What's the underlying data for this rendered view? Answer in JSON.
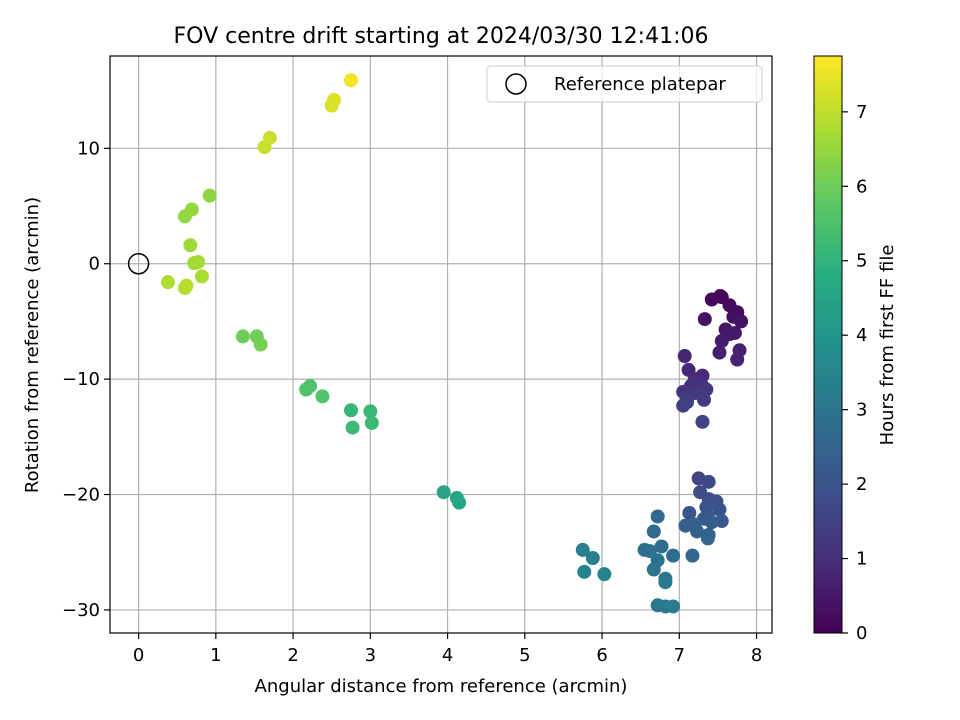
{
  "chart_data": {
    "type": "scatter",
    "title": "FOV centre drift starting at 2024/03/30 12:41:06",
    "xlabel": "Angular distance from reference (arcmin)",
    "ylabel": "Rotation from reference (arcmin)",
    "xlim": [
      -0.37,
      8.2
    ],
    "ylim": [
      -32.0,
      18.0
    ],
    "xticks": [
      0,
      1,
      2,
      3,
      4,
      5,
      6,
      7,
      8
    ],
    "yticks": [
      -30,
      -20,
      -10,
      0,
      10
    ],
    "grid": true,
    "legend": {
      "placement": "top-right",
      "entries": [
        "Reference platepar"
      ]
    },
    "reference_point": {
      "x": 0,
      "y": 0
    },
    "colorbar": {
      "label": "Hours from first FF file",
      "range": [
        0,
        7.75
      ],
      "ticks": [
        0,
        1,
        2,
        3,
        4,
        5,
        6,
        7
      ],
      "colormap": "viridis"
    },
    "points": [
      {
        "x": 7.53,
        "y": -2.8,
        "c": 0.05
      },
      {
        "x": 7.55,
        "y": -2.9,
        "c": 0.1
      },
      {
        "x": 7.42,
        "y": -3.1,
        "c": 0.15
      },
      {
        "x": 7.65,
        "y": -3.6,
        "c": 0.2
      },
      {
        "x": 7.75,
        "y": -4.2,
        "c": 0.25
      },
      {
        "x": 7.7,
        "y": -4.6,
        "c": 0.3
      },
      {
        "x": 7.8,
        "y": -5.0,
        "c": 0.35
      },
      {
        "x": 7.33,
        "y": -4.8,
        "c": 0.4
      },
      {
        "x": 7.6,
        "y": -5.7,
        "c": 0.45
      },
      {
        "x": 7.65,
        "y": -6.1,
        "c": 0.5
      },
      {
        "x": 7.72,
        "y": -6.0,
        "c": 0.55
      },
      {
        "x": 7.55,
        "y": -6.7,
        "c": 0.6
      },
      {
        "x": 7.52,
        "y": -7.7,
        "c": 0.65
      },
      {
        "x": 7.78,
        "y": -7.5,
        "c": 0.7
      },
      {
        "x": 7.75,
        "y": -8.3,
        "c": 0.75
      },
      {
        "x": 7.07,
        "y": -8.0,
        "c": 0.8
      },
      {
        "x": 7.12,
        "y": -9.2,
        "c": 0.85
      },
      {
        "x": 7.3,
        "y": -9.7,
        "c": 0.9
      },
      {
        "x": 7.2,
        "y": -10.0,
        "c": 0.95
      },
      {
        "x": 7.25,
        "y": -10.3,
        "c": 1.0
      },
      {
        "x": 7.15,
        "y": -10.6,
        "c": 1.05
      },
      {
        "x": 7.3,
        "y": -10.6,
        "c": 1.1
      },
      {
        "x": 7.35,
        "y": -10.9,
        "c": 1.15
      },
      {
        "x": 7.05,
        "y": -11.1,
        "c": 1.2
      },
      {
        "x": 7.2,
        "y": -11.2,
        "c": 1.25
      },
      {
        "x": 7.28,
        "y": -11.3,
        "c": 1.3
      },
      {
        "x": 7.1,
        "y": -11.7,
        "c": 1.35
      },
      {
        "x": 7.32,
        "y": -11.8,
        "c": 1.4
      },
      {
        "x": 7.05,
        "y": -12.3,
        "c": 1.45
      },
      {
        "x": 7.1,
        "y": -12.0,
        "c": 1.5
      },
      {
        "x": 7.3,
        "y": -13.7,
        "c": 1.55
      },
      {
        "x": 7.25,
        "y": -18.6,
        "c": 1.6
      },
      {
        "x": 7.38,
        "y": -18.9,
        "c": 1.7
      },
      {
        "x": 7.27,
        "y": -19.8,
        "c": 1.8
      },
      {
        "x": 7.38,
        "y": -20.4,
        "c": 1.85
      },
      {
        "x": 7.48,
        "y": -20.6,
        "c": 1.9
      },
      {
        "x": 7.35,
        "y": -21.1,
        "c": 1.95
      },
      {
        "x": 7.52,
        "y": -21.3,
        "c": 2.0
      },
      {
        "x": 7.13,
        "y": -21.6,
        "c": 2.05
      },
      {
        "x": 7.37,
        "y": -21.9,
        "c": 2.1
      },
      {
        "x": 7.32,
        "y": -22.1,
        "c": 2.15
      },
      {
        "x": 7.55,
        "y": -22.3,
        "c": 2.2
      },
      {
        "x": 7.42,
        "y": -22.4,
        "c": 2.25
      },
      {
        "x": 7.08,
        "y": -22.7,
        "c": 2.3
      },
      {
        "x": 7.2,
        "y": -22.6,
        "c": 2.35
      },
      {
        "x": 7.23,
        "y": -23.2,
        "c": 2.4
      },
      {
        "x": 7.38,
        "y": -23.5,
        "c": 2.45
      },
      {
        "x": 7.37,
        "y": -23.8,
        "c": 2.5
      },
      {
        "x": 7.17,
        "y": -25.3,
        "c": 2.55
      },
      {
        "x": 6.72,
        "y": -21.9,
        "c": 2.6
      },
      {
        "x": 6.67,
        "y": -23.2,
        "c": 2.65
      },
      {
        "x": 6.77,
        "y": -24.5,
        "c": 2.7
      },
      {
        "x": 6.92,
        "y": -25.3,
        "c": 2.75
      },
      {
        "x": 6.55,
        "y": -24.8,
        "c": 2.8
      },
      {
        "x": 6.62,
        "y": -24.9,
        "c": 2.85
      },
      {
        "x": 6.72,
        "y": -25.7,
        "c": 2.9
      },
      {
        "x": 6.67,
        "y": -26.5,
        "c": 2.95
      },
      {
        "x": 6.82,
        "y": -27.3,
        "c": 3.0
      },
      {
        "x": 6.82,
        "y": -27.6,
        "c": 3.05
      },
      {
        "x": 6.72,
        "y": -29.6,
        "c": 3.1
      },
      {
        "x": 6.82,
        "y": -29.7,
        "c": 3.15
      },
      {
        "x": 6.92,
        "y": -29.7,
        "c": 3.2
      },
      {
        "x": 5.75,
        "y": -24.8,
        "c": 3.3
      },
      {
        "x": 5.88,
        "y": -25.5,
        "c": 3.35
      },
      {
        "x": 5.77,
        "y": -26.7,
        "c": 3.4
      },
      {
        "x": 6.03,
        "y": -26.9,
        "c": 3.45
      },
      {
        "x": 3.95,
        "y": -19.8,
        "c": 4.5
      },
      {
        "x": 4.12,
        "y": -20.3,
        "c": 4.55
      },
      {
        "x": 4.15,
        "y": -20.7,
        "c": 4.6
      },
      {
        "x": 2.75,
        "y": -12.7,
        "c": 5.1
      },
      {
        "x": 3.0,
        "y": -12.8,
        "c": 5.15
      },
      {
        "x": 3.02,
        "y": -13.8,
        "c": 5.2
      },
      {
        "x": 2.77,
        "y": -14.2,
        "c": 5.25
      },
      {
        "x": 2.17,
        "y": -10.9,
        "c": 5.5
      },
      {
        "x": 2.22,
        "y": -10.6,
        "c": 5.55
      },
      {
        "x": 2.38,
        "y": -11.5,
        "c": 5.6
      },
      {
        "x": 1.35,
        "y": -6.3,
        "c": 6.0
      },
      {
        "x": 1.53,
        "y": -6.3,
        "c": 6.05
      },
      {
        "x": 1.58,
        "y": -7.0,
        "c": 6.1
      },
      {
        "x": 0.92,
        "y": 5.9,
        "c": 6.4
      },
      {
        "x": 0.6,
        "y": 4.1,
        "c": 6.45
      },
      {
        "x": 0.69,
        "y": 4.7,
        "c": 6.5
      },
      {
        "x": 0.67,
        "y": 1.6,
        "c": 6.6
      },
      {
        "x": 0.72,
        "y": 0.05,
        "c": 6.65
      },
      {
        "x": 0.77,
        "y": 0.15,
        "c": 6.7
      },
      {
        "x": 0.82,
        "y": -1.1,
        "c": 6.75
      },
      {
        "x": 0.38,
        "y": -1.6,
        "c": 6.8
      },
      {
        "x": 0.6,
        "y": -2.1,
        "c": 6.85
      },
      {
        "x": 0.62,
        "y": -1.9,
        "c": 6.9
      },
      {
        "x": 1.63,
        "y": 10.1,
        "c": 7.1
      },
      {
        "x": 1.7,
        "y": 10.9,
        "c": 7.15
      },
      {
        "x": 2.5,
        "y": 13.7,
        "c": 7.3
      },
      {
        "x": 2.53,
        "y": 14.2,
        "c": 7.35
      },
      {
        "x": 2.75,
        "y": 15.9,
        "c": 7.6
      }
    ]
  }
}
